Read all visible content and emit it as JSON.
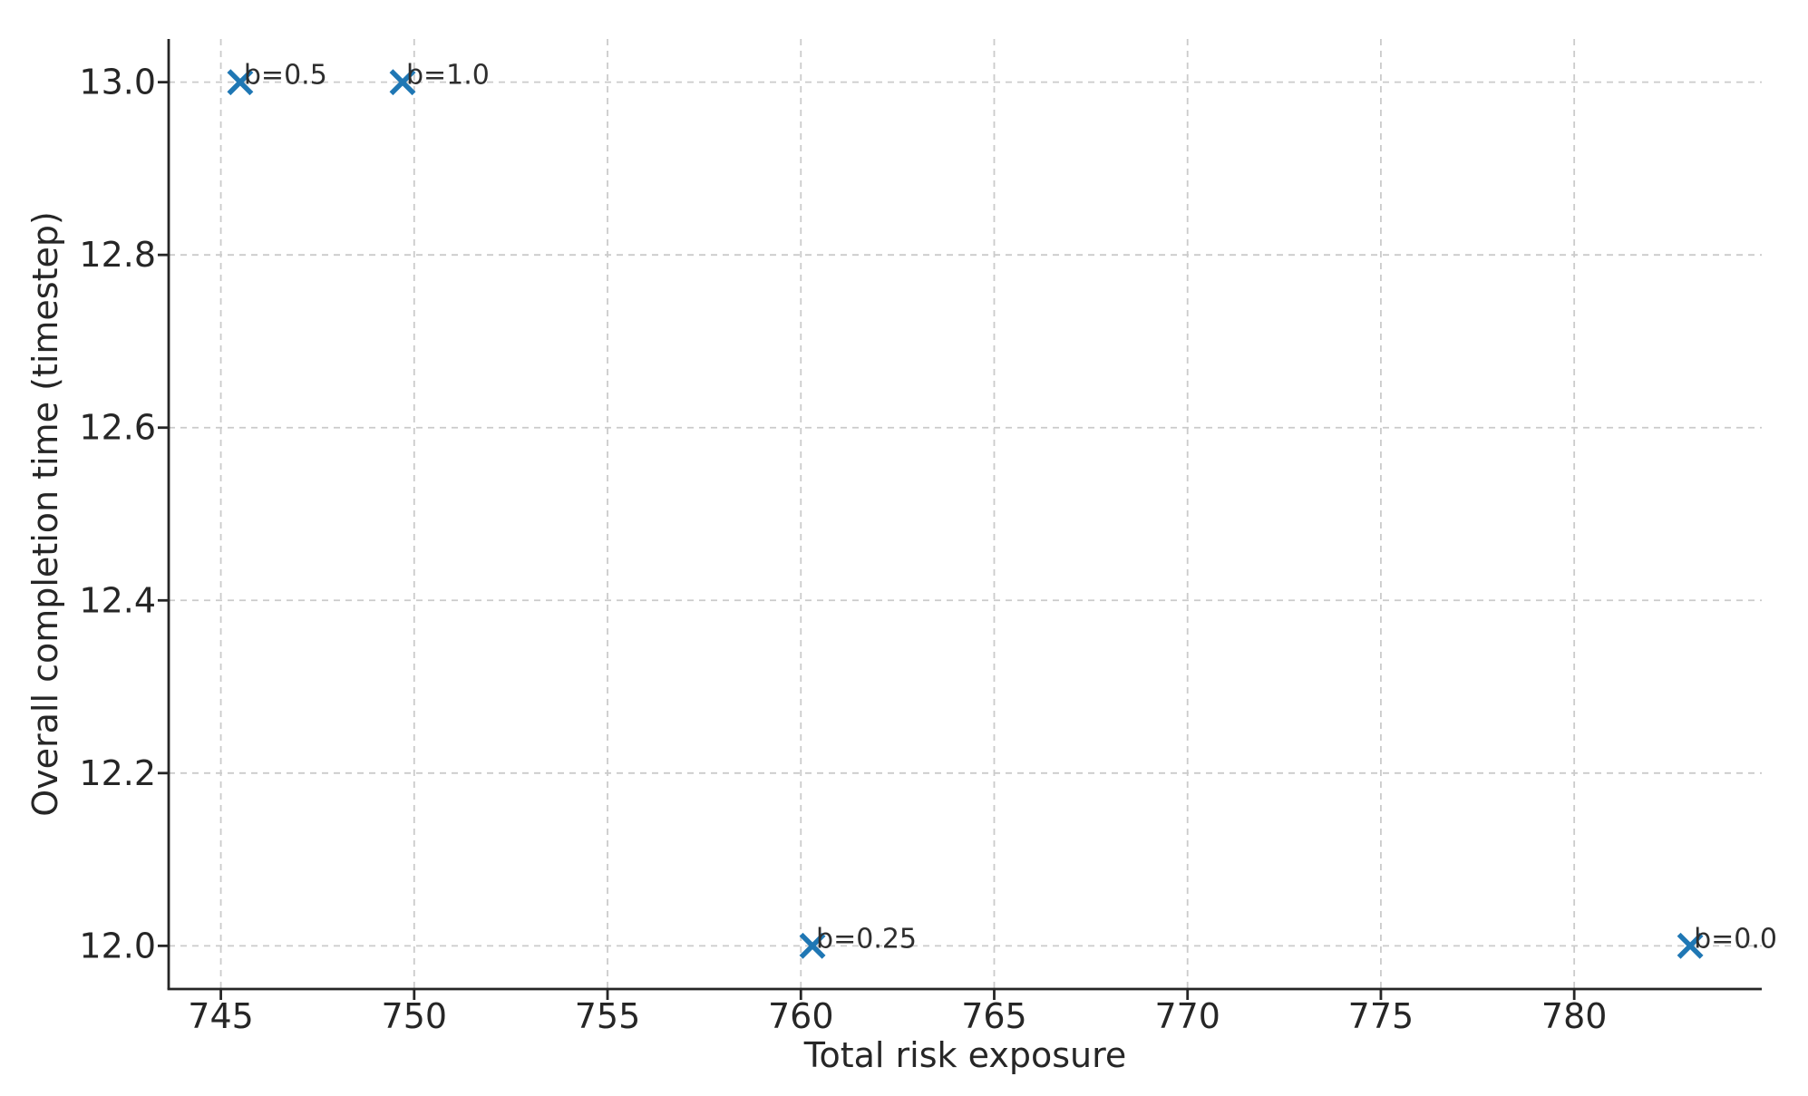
{
  "chart_data": {
    "type": "scatter",
    "title": "",
    "xlabel": "Total risk exposure",
    "ylabel": "Overall completion time (timestep)",
    "xlim": [
      743.65,
      784.85
    ],
    "ylim": [
      11.95,
      13.05
    ],
    "xticks": [
      745,
      750,
      755,
      760,
      765,
      770,
      775,
      780
    ],
    "yticks": [
      12.0,
      12.2,
      12.4,
      12.6,
      12.8,
      13.0
    ],
    "grid": true,
    "legend": false,
    "points": [
      {
        "x": 745.5,
        "y": 13.0,
        "label": "b=0.5"
      },
      {
        "x": 749.7,
        "y": 13.0,
        "label": "b=1.0"
      },
      {
        "x": 760.3,
        "y": 12.0,
        "label": "b=0.25"
      },
      {
        "x": 783.0,
        "y": 12.0,
        "label": "b=0.0"
      }
    ],
    "marker": {
      "shape": "x",
      "color": "#1f77b4",
      "size": 25,
      "stroke_width": 5.5
    },
    "style": {
      "grid_color": "#cbcbcb",
      "axis_color": "#262626",
      "tick_label_color": "#262626",
      "annotation_color": "#2e2e2e",
      "background": "#ffffff"
    }
  }
}
